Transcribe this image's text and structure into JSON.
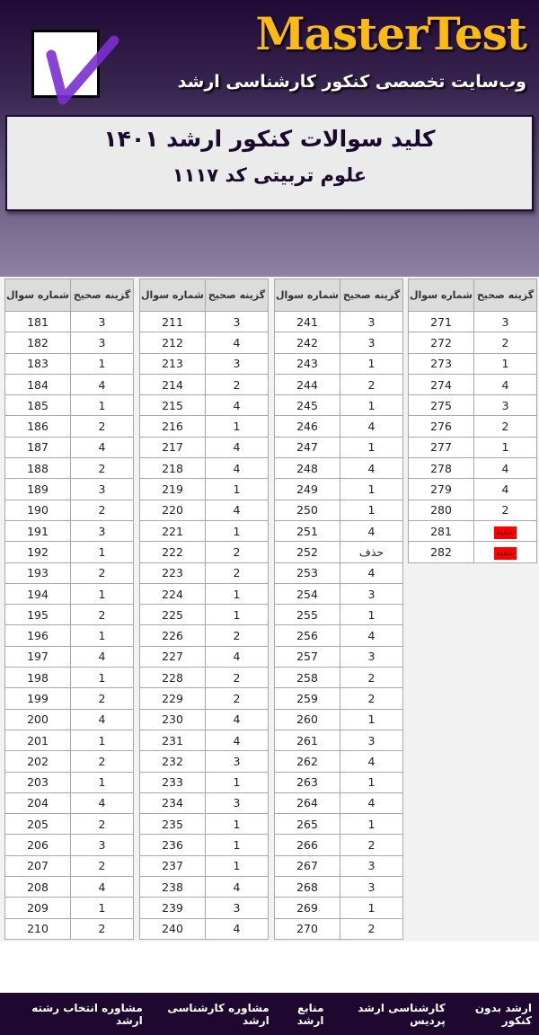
{
  "header": {
    "brand": "MasterTest",
    "tagline": "وب‌سایت تخصصی کنکور کارشناسی ارشد",
    "title": "کلید سوالات کنکور ارشد ۱۴۰۱",
    "subtitle": "علوم تربیتی کد ۱۱۱۷",
    "accent": "#fdbb12",
    "background": "#1f0a36"
  },
  "table_headers": {
    "question": "شماره سوال",
    "answer": "گزینه صحیح"
  },
  "tables": [
    {
      "start": 181,
      "answers": [
        "3",
        "3",
        "1",
        "4",
        "1",
        "2",
        "4",
        "2",
        "3",
        "2",
        "3",
        "1",
        "2",
        "1",
        "2",
        "1",
        "4",
        "1",
        "2",
        "4",
        "1",
        "2",
        "1",
        "4",
        "2",
        "3",
        "2",
        "4",
        "1",
        "2"
      ]
    },
    {
      "start": 211,
      "answers": [
        "3",
        "4",
        "3",
        "2",
        "4",
        "1",
        "4",
        "4",
        "1",
        "4",
        "1",
        "2",
        "2",
        "1",
        "1",
        "2",
        "4",
        "2",
        "2",
        "4",
        "4",
        "3",
        "1",
        "3",
        "1",
        "1",
        "1",
        "4",
        "3",
        "4"
      ]
    },
    {
      "start": 241,
      "answers": [
        "3",
        "3",
        "1",
        "2",
        "1",
        "4",
        "1",
        "4",
        "1",
        "1",
        "4",
        "حذف",
        "4",
        "3",
        "1",
        "4",
        "3",
        "2",
        "2",
        "1",
        "3",
        "4",
        "1",
        "4",
        "1",
        "2",
        "3",
        "3",
        "1",
        "2"
      ]
    },
    {
      "start": 271,
      "answers": [
        "3",
        "2",
        "1",
        "4",
        "3",
        "2",
        "1",
        "4",
        "4",
        "2",
        "سفید",
        "سفید"
      ]
    }
  ],
  "blank_label": "سفید",
  "blank_color": "#ff0000",
  "footer": {
    "links": [
      "ارشد بدون کنکور",
      "کارشناسی ارشد پردیس",
      "منابع ارشد",
      "مشاوره کارشناسی ارشد",
      "مشاوره انتخاب رشته ارشد"
    ]
  }
}
